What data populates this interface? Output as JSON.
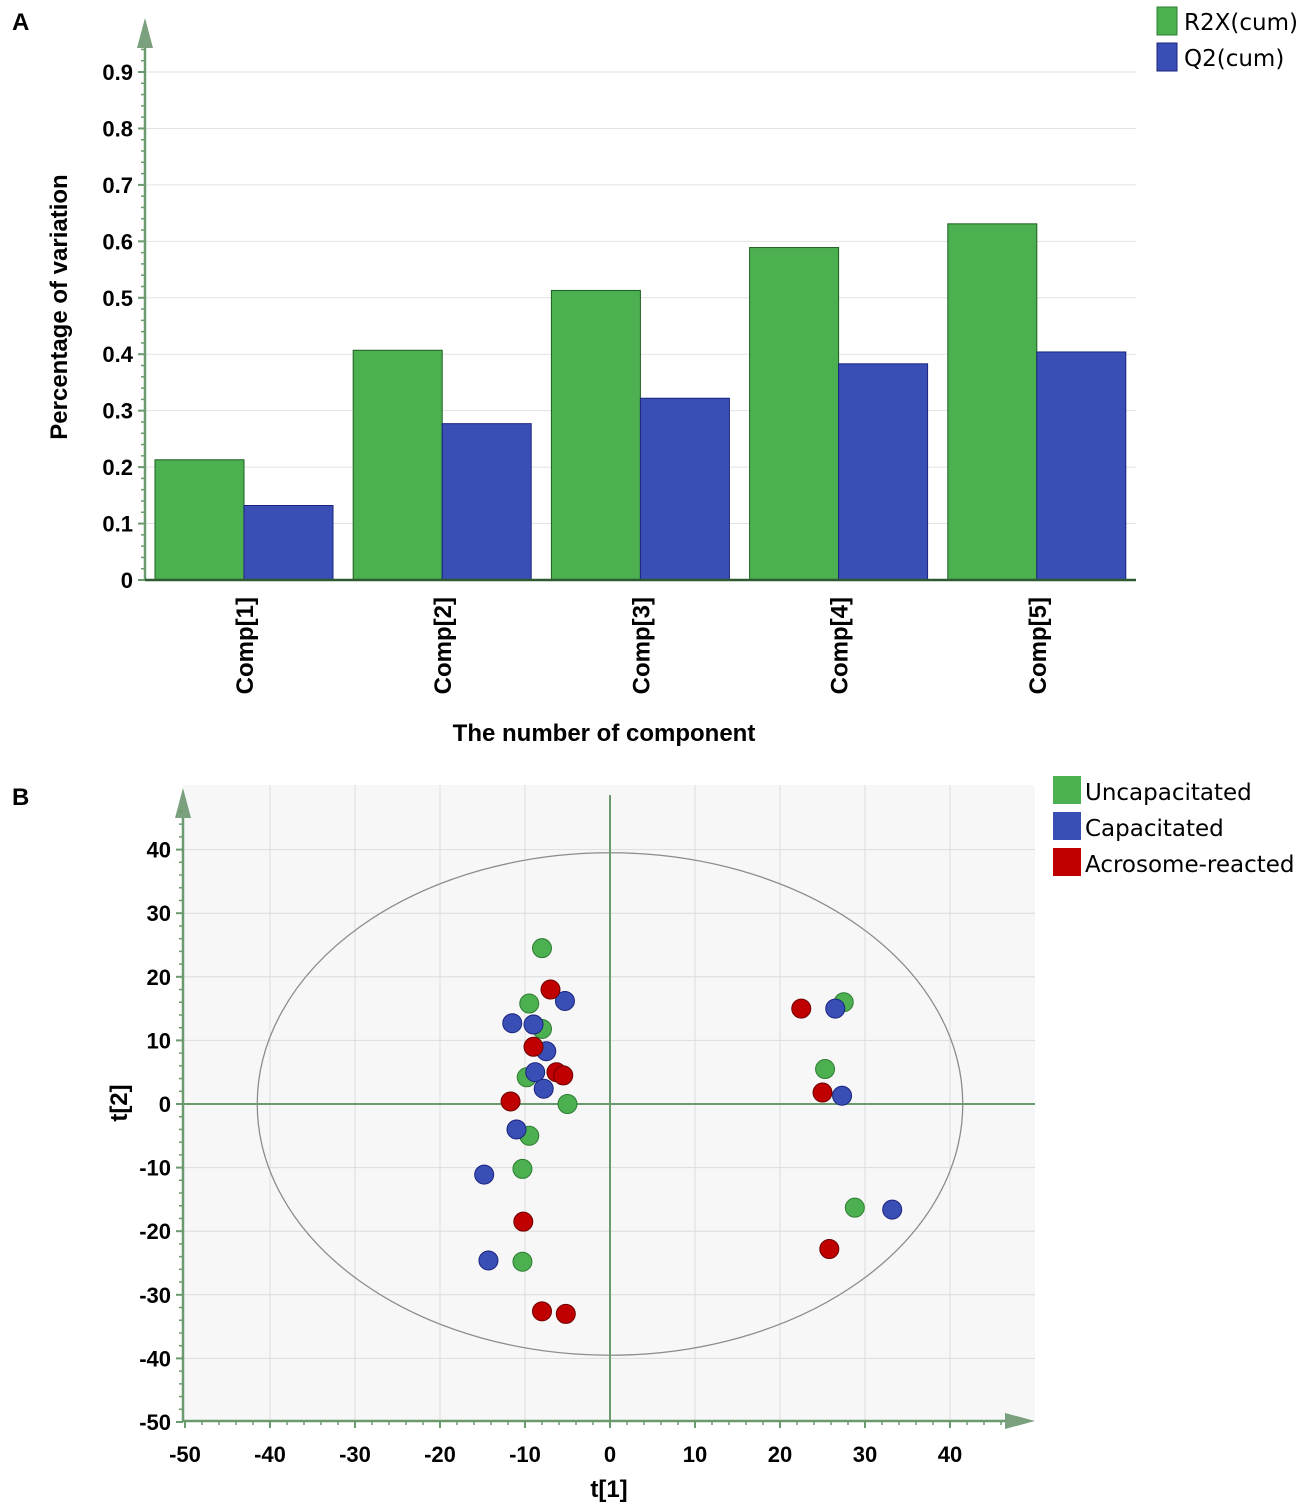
{
  "chart_data": [
    {
      "panel_label": "A",
      "type": "bar",
      "categories": [
        "Comp[1]",
        "Comp[2]",
        "Comp[3]",
        "Comp[4]",
        "Comp[5]"
      ],
      "series": [
        {
          "name": "R2X(cum)",
          "color": "#4caf50",
          "values": [
            0.213,
            0.407,
            0.513,
            0.589,
            0.631
          ]
        },
        {
          "name": "Q2(cum)",
          "color": "#3a4fb5",
          "values": [
            0.132,
            0.277,
            0.322,
            0.383,
            0.404
          ]
        }
      ],
      "xlabel": "The number of component",
      "ylabel": "Percentage of variation",
      "ylim": [
        0,
        0.9
      ],
      "yticks": [
        "0",
        "0.1",
        "0.2",
        "0.3",
        "0.4",
        "0.5",
        "0.6",
        "0.7",
        "0.8",
        "0.9"
      ],
      "legend_position": "top-right",
      "grid": true
    },
    {
      "panel_label": "B",
      "type": "scatter",
      "xlabel": "t[1]",
      "ylabel": "t[2]",
      "xlim": [
        -50,
        50
      ],
      "ylim": [
        -50,
        50
      ],
      "xticks": [
        "-50",
        "-40",
        "-30",
        "-20",
        "-10",
        "0",
        "10",
        "20",
        "30",
        "40"
      ],
      "yticks": [
        "40",
        "30",
        "20",
        "10",
        "0",
        "-10",
        "-20",
        "-30",
        "-40",
        "-50"
      ],
      "ellipse": {
        "rx": 41.5,
        "ry": 39.5
      },
      "legend_position": "top-right",
      "grid": true,
      "series": [
        {
          "name": "Uncapacitated",
          "color": "#4caf50",
          "points": [
            [
              -8,
              24.5
            ],
            [
              -9.5,
              15.8
            ],
            [
              -8,
              11.8
            ],
            [
              -9.8,
              4.2
            ],
            [
              -5,
              0
            ],
            [
              -9.5,
              -5
            ],
            [
              -10.3,
              -10.2
            ],
            [
              -10.3,
              -24.8
            ],
            [
              27.5,
              16
            ],
            [
              25.3,
              5.5
            ],
            [
              28.8,
              -16.3
            ]
          ]
        },
        {
          "name": "Capacitated",
          "color": "#3a4fb5",
          "points": [
            [
              -5.3,
              16.2
            ],
            [
              -11.5,
              12.7
            ],
            [
              -9,
              12.5
            ],
            [
              -7.5,
              8.3
            ],
            [
              -8.8,
              5
            ],
            [
              -7.8,
              2.4
            ],
            [
              -11,
              -4
            ],
            [
              -14.8,
              -11.1
            ],
            [
              -14.3,
              -24.6
            ],
            [
              26.5,
              15
            ],
            [
              27.3,
              1.3
            ],
            [
              33.2,
              -16.6
            ]
          ]
        },
        {
          "name": "Acrosome-reacted",
          "color": "#c00000",
          "points": [
            [
              -7,
              18
            ],
            [
              -9,
              9
            ],
            [
              -6.3,
              5
            ],
            [
              -5.5,
              4.5
            ],
            [
              -11.7,
              0.4
            ],
            [
              -10.2,
              -18.5
            ],
            [
              -8,
              -32.6
            ],
            [
              -5.2,
              -33
            ],
            [
              22.5,
              15
            ],
            [
              25,
              1.8
            ],
            [
              25.8,
              -22.8
            ]
          ]
        }
      ]
    }
  ]
}
